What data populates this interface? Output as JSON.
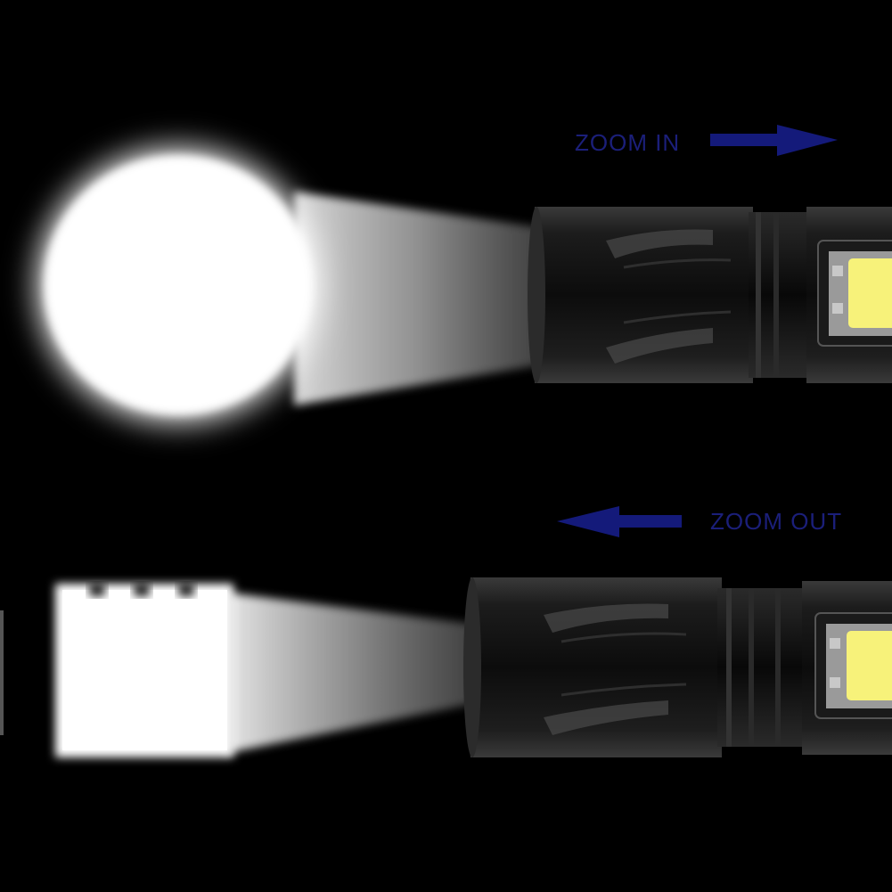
{
  "labels": {
    "zoom_in": "ZOOM IN",
    "zoom_out": "ZOOM OUT"
  },
  "icons": {
    "zoom_in_arrow": "arrow-right-icon",
    "zoom_out_arrow": "arrow-left-icon"
  },
  "colors": {
    "background": "#000000",
    "label_text": "#1b1f7a",
    "arrow": "#141a7a",
    "beam": "#ffffff",
    "cob_light": "#f7f27a"
  }
}
